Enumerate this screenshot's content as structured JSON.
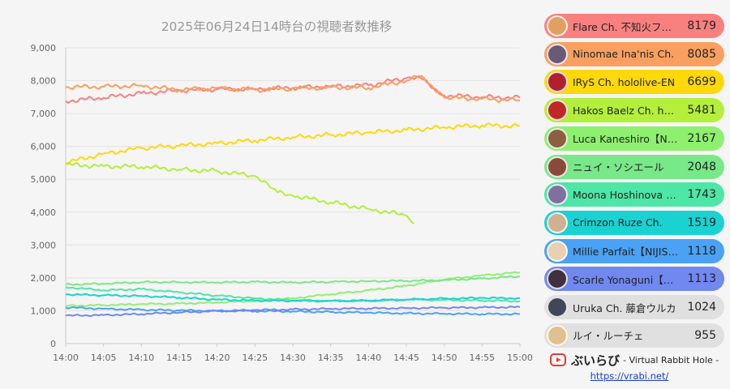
{
  "chart_data": {
    "type": "line",
    "title": "2025年06月24日14時台の視聴者数推移",
    "x_ticks": [
      "14:00",
      "14:05",
      "14:10",
      "14:15",
      "14:20",
      "14:25",
      "14:30",
      "14:35",
      "14:40",
      "14:45",
      "14:50",
      "14:55",
      "15:00"
    ],
    "xlim": [
      "14:00",
      "15:00"
    ],
    "y_ticks": [
      "0",
      "1,000",
      "2,000",
      "3,000",
      "4,000",
      "5,000",
      "6,000",
      "7,000",
      "8,000",
      "9,000"
    ],
    "ylim": [
      0,
      9000
    ],
    "grid": "horizontal",
    "series": [
      {
        "name": "Flare Ch. 不知火フレア",
        "color": "#fa8080",
        "points": [
          [
            "14:00",
            7380
          ],
          [
            "14:05",
            7480
          ],
          [
            "14:10",
            7620
          ],
          [
            "14:15",
            7700
          ],
          [
            "14:20",
            7740
          ],
          [
            "14:25",
            7750
          ],
          [
            "14:30",
            7780
          ],
          [
            "14:35",
            7830
          ],
          [
            "14:40",
            7860
          ],
          [
            "14:45",
            8080
          ],
          [
            "14:47",
            8060
          ],
          [
            "14:50",
            7550
          ],
          [
            "14:55",
            7500
          ],
          [
            "15:00",
            7480
          ]
        ]
      },
      {
        "name": "Ninomae Ina'nis Ch.",
        "color": "#f9a060",
        "points": [
          [
            "14:00",
            7800
          ],
          [
            "14:05",
            7820
          ],
          [
            "14:10",
            7850
          ],
          [
            "14:15",
            7720
          ],
          [
            "14:20",
            7780
          ],
          [
            "14:25",
            7720
          ],
          [
            "14:30",
            7760
          ],
          [
            "14:35",
            7800
          ],
          [
            "14:40",
            7780
          ],
          [
            "14:45",
            8000
          ],
          [
            "14:47",
            8150
          ],
          [
            "14:50",
            7480
          ],
          [
            "14:55",
            7450
          ],
          [
            "15:00",
            7400
          ]
        ]
      },
      {
        "name": "IRyS Ch. hololive-EN",
        "color": "#ffd80a",
        "points": [
          [
            "14:00",
            5500
          ],
          [
            "14:05",
            5780
          ],
          [
            "14:10",
            5950
          ],
          [
            "14:15",
            6020
          ],
          [
            "14:20",
            6100
          ],
          [
            "14:25",
            6180
          ],
          [
            "14:30",
            6280
          ],
          [
            "14:35",
            6350
          ],
          [
            "14:40",
            6420
          ],
          [
            "14:45",
            6500
          ],
          [
            "14:50",
            6580
          ],
          [
            "14:55",
            6640
          ],
          [
            "15:00",
            6620
          ]
        ]
      },
      {
        "name": "Hakos Baelz Ch. hololive-EN",
        "color": "#b4ef3b",
        "points": [
          [
            "14:00",
            5450
          ],
          [
            "14:05",
            5400
          ],
          [
            "14:10",
            5380
          ],
          [
            "14:15",
            5300
          ],
          [
            "14:20",
            5250
          ],
          [
            "14:25",
            5100
          ],
          [
            "14:28",
            4600
          ],
          [
            "14:30",
            4500
          ],
          [
            "14:35",
            4300
          ],
          [
            "14:40",
            4100
          ],
          [
            "14:45",
            3900
          ],
          [
            "14:46",
            3650
          ]
        ]
      },
      {
        "name": "Luca Kaneshiro【NIJISANJI EN】",
        "color": "#8ef06e",
        "points": [
          [
            "14:00",
            1150
          ],
          [
            "14:05",
            1170
          ],
          [
            "14:10",
            1200
          ],
          [
            "14:15",
            1220
          ],
          [
            "14:20",
            1250
          ],
          [
            "14:25",
            1300
          ],
          [
            "14:30",
            1380
          ],
          [
            "14:35",
            1500
          ],
          [
            "14:40",
            1620
          ],
          [
            "14:45",
            1760
          ],
          [
            "14:50",
            1950
          ],
          [
            "14:55",
            2080
          ],
          [
            "15:00",
            2167
          ]
        ]
      },
      {
        "name": "ニュイ・ソシエール",
        "color": "#78e888",
        "points": [
          [
            "14:00",
            1800
          ],
          [
            "14:05",
            1820
          ],
          [
            "14:10",
            1870
          ],
          [
            "14:15",
            1870
          ],
          [
            "14:20",
            1860
          ],
          [
            "14:25",
            1880
          ],
          [
            "14:30",
            1860
          ],
          [
            "14:35",
            1880
          ],
          [
            "14:40",
            1900
          ],
          [
            "14:45",
            1910
          ],
          [
            "14:50",
            1930
          ],
          [
            "14:55",
            1980
          ],
          [
            "15:00",
            2048
          ]
        ]
      },
      {
        "name": "Moona Hoshinova hololive-ID",
        "color": "#4ee6a6",
        "points": [
          [
            "14:00",
            1720
          ],
          [
            "14:05",
            1620
          ],
          [
            "14:10",
            1660
          ],
          [
            "14:15",
            1560
          ],
          [
            "14:20",
            1460
          ],
          [
            "14:25",
            1380
          ],
          [
            "14:30",
            1320
          ],
          [
            "14:35",
            1300
          ],
          [
            "14:40",
            1300
          ],
          [
            "14:45",
            1340
          ],
          [
            "14:50",
            1330
          ],
          [
            "14:55",
            1310
          ],
          [
            "15:00",
            1290
          ]
        ]
      },
      {
        "name": "Crimzon Ruze Ch.",
        "color": "#1ad2d2",
        "points": [
          [
            "14:00",
            1500
          ],
          [
            "14:05",
            1470
          ],
          [
            "14:10",
            1450
          ],
          [
            "14:15",
            1400
          ],
          [
            "14:20",
            1340
          ],
          [
            "14:25",
            1310
          ],
          [
            "14:30",
            1300
          ],
          [
            "14:35",
            1300
          ],
          [
            "14:40",
            1310
          ],
          [
            "14:45",
            1340
          ],
          [
            "14:50",
            1370
          ],
          [
            "14:55",
            1390
          ],
          [
            "15:00",
            1380
          ]
        ]
      },
      {
        "name": "Millie Parfait【NIJISANJI EN】",
        "color": "#4aa2f5",
        "points": [
          [
            "14:00",
            1100
          ],
          [
            "14:05",
            1060
          ],
          [
            "14:10",
            1030
          ],
          [
            "14:15",
            1010
          ],
          [
            "14:20",
            1000
          ],
          [
            "14:25",
            990
          ],
          [
            "14:30",
            980
          ],
          [
            "14:35",
            960
          ],
          [
            "14:40",
            940
          ],
          [
            "14:45",
            920
          ],
          [
            "14:50",
            910
          ],
          [
            "14:55",
            900
          ],
          [
            "15:00",
            900
          ]
        ]
      },
      {
        "name": "Scarle Yonaguni【NIJISANJI EN】",
        "color": "#7088f0",
        "points": [
          [
            "14:00",
            850
          ],
          [
            "14:05",
            870
          ],
          [
            "14:10",
            900
          ],
          [
            "14:15",
            950
          ],
          [
            "14:20",
            990
          ],
          [
            "14:25",
            1020
          ],
          [
            "14:30",
            1040
          ],
          [
            "14:35",
            1060
          ],
          [
            "14:40",
            1070
          ],
          [
            "14:45",
            1080
          ],
          [
            "14:50",
            1090
          ],
          [
            "14:55",
            1100
          ],
          [
            "15:00",
            1113
          ]
        ]
      }
    ]
  },
  "ranking": [
    {
      "name": "Flare Ch. 不知火フレア",
      "value": "8179",
      "color": "#fa8080",
      "avatar": "#e2a060"
    },
    {
      "name": "Ninomae Ina'nis Ch.",
      "value": "8085",
      "color": "#f9a060",
      "avatar": "#6a5a78"
    },
    {
      "name": "IRyS Ch. hololive-EN",
      "value": "6699",
      "color": "#ffd80a",
      "avatar": "#b02030"
    },
    {
      "name": "Hakos Baelz Ch. hololive-EN",
      "value": "5481",
      "color": "#b4ef3b",
      "avatar": "#c02828"
    },
    {
      "name": "Luca Kaneshiro【NIJISANJI EN】",
      "value": "2167",
      "color": "#8ef06e",
      "avatar": "#8a6040"
    },
    {
      "name": "ニュイ・ソシエール",
      "value": "2048",
      "color": "#78e888",
      "avatar": "#8a4a3a"
    },
    {
      "name": "Moona Hoshinova hololive-ID",
      "value": "1743",
      "color": "#4ee6a6",
      "avatar": "#8070a0"
    },
    {
      "name": "Crimzon Ruze Ch.",
      "value": "1519",
      "color": "#1ad2d2",
      "avatar": "#d0b090"
    },
    {
      "name": "Millie Parfait【NIJISANJI EN】",
      "value": "1118",
      "color": "#4aa2f5",
      "avatar": "#e8d0b0"
    },
    {
      "name": "Scarle Yonaguni【NIJISANJI EN】",
      "value": "1113",
      "color": "#7088f0",
      "avatar": "#403040"
    },
    {
      "name": "Uruka Ch. 藤倉ウルカ",
      "value": "1024",
      "color": "#e0e0e0",
      "avatar": "#404858"
    },
    {
      "name": "ルイ・ルーチェ",
      "value": "955",
      "color": "#e0e0e0",
      "avatar": "#e0c090"
    }
  ],
  "footer": {
    "brand": "ぶいらび",
    "tagline": "- Virtual Rabbit Hole -",
    "url": "https://vrabi.net/",
    "accent": "#e03a3a"
  }
}
